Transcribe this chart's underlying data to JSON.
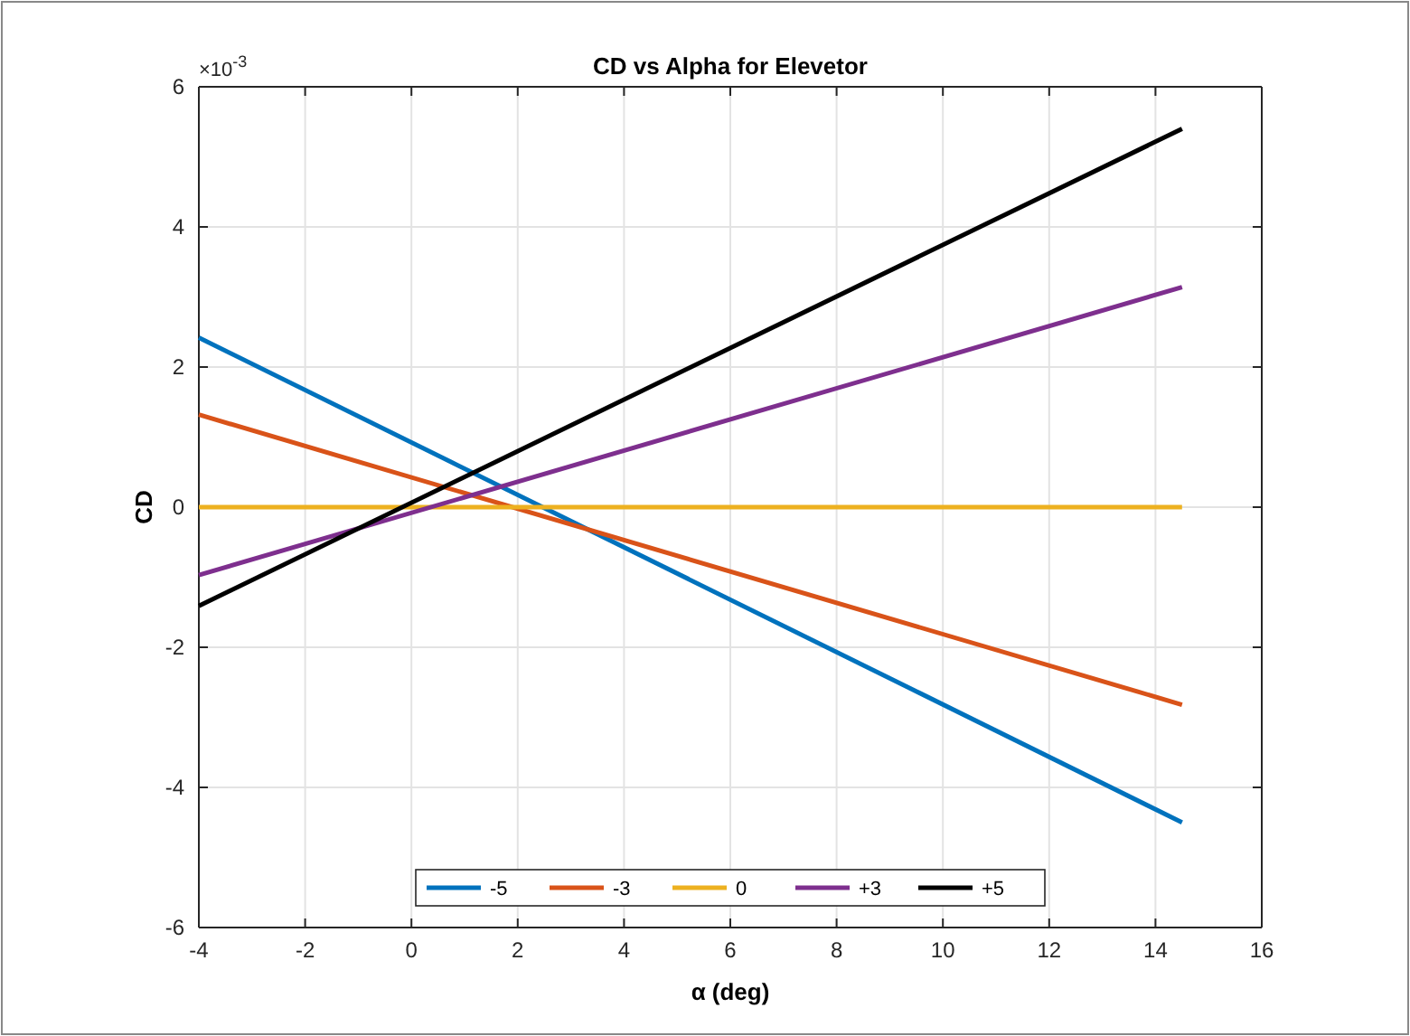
{
  "chart_data": {
    "type": "line",
    "title": "CD vs Alpha for Elevetor",
    "xlabel": "α (deg)",
    "ylabel": "CD",
    "annotations": [
      "×10$^{-3}$"
    ],
    "xlim": [
      -4,
      16
    ],
    "xticks": [
      -4,
      -2,
      0,
      2,
      4,
      6,
      8,
      10,
      12,
      14,
      16
    ],
    "ylim": [
      -6,
      6
    ],
    "yticks": [
      -6,
      -4,
      -2,
      0,
      2,
      4,
      6
    ],
    "grid": true,
    "legend": "bottom",
    "line_style": "solid",
    "marker": "none",
    "x": [
      -4,
      14.5
    ],
    "series": [
      {
        "name": "-5",
        "color": "#0072bd",
        "values": [
          2.42,
          -4.5
        ]
      },
      {
        "name": "-3",
        "color": "#d95319",
        "values": [
          1.32,
          -2.82
        ]
      },
      {
        "name": "0",
        "color": "#edb120",
        "values": [
          0,
          0
        ]
      },
      {
        "name": "+3",
        "color": "#7e2f8e",
        "values": [
          -0.97,
          3.14
        ]
      },
      {
        "name": "+5",
        "color": "#000000",
        "values": [
          -1.41,
          5.4
        ]
      }
    ]
  }
}
